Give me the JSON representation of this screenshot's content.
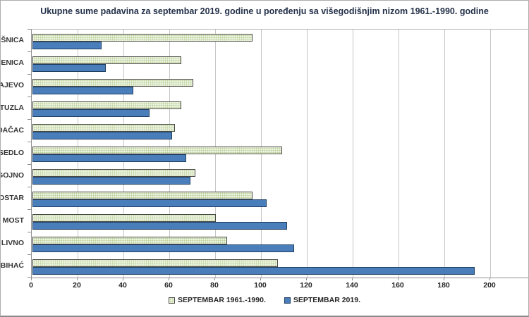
{
  "chart_data": {
    "type": "bar",
    "orientation": "horizontal",
    "title": "Ukupne sume padavina za septembar 2019. godine u poređenju sa višegodišnjim nizom 1961.-1990.  godine",
    "categories": [
      "LAŠNICA",
      "ZENICA",
      "ARAJEVO",
      "TUZLA",
      "ADAČAC",
      "N-SEDLO",
      "UGOJNO",
      "MOSTAR",
      "KI MOST",
      "LIVNO",
      "BIHAĆ"
    ],
    "series": [
      {
        "name": "SEPTEMBAR 1961.-1990.",
        "fill_color": "#edf3e1",
        "pattern": "dotted",
        "values": [
          96,
          65,
          70,
          65,
          62,
          109,
          71,
          96,
          80,
          85,
          107
        ]
      },
      {
        "name": "SEPTEMBAR 2019.",
        "fill_color": "#4a7ebb",
        "values": [
          30,
          32,
          44,
          51,
          61,
          67,
          69,
          102,
          111,
          114,
          193
        ]
      }
    ],
    "xlim": [
      0,
      217
    ],
    "xticks": [
      0,
      20,
      40,
      60,
      80,
      100,
      120,
      140,
      160,
      180,
      200
    ],
    "xlabel": "",
    "ylabel": "",
    "grid": "vertical",
    "legend_position": "bottom"
  },
  "colors": {
    "series_1961_1990": "#edf3e1",
    "series_1961_1990_dots": "#b9cf96",
    "series_2019": "#4a7ebb",
    "gridline": "#c6c6c6",
    "axis": "#8f8f8f",
    "title_text": "#233049"
  }
}
